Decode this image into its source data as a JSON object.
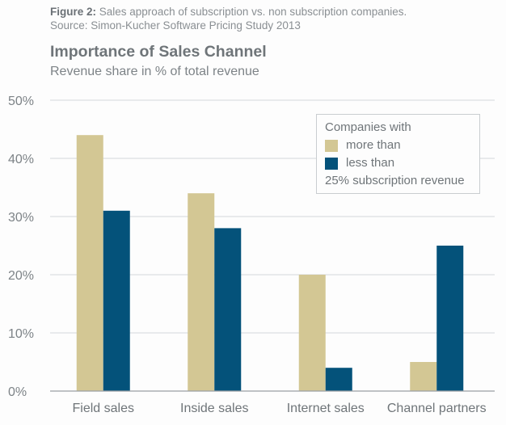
{
  "caption": {
    "label": "Figure 2:",
    "text": " Sales approach of subscription vs. non subscription companies.",
    "source": "Source: Simon-Kucher Software Pricing Study 2013"
  },
  "chart_data": {
    "type": "bar",
    "title": "Importance of Sales Channel",
    "subtitle": "Revenue share in % of total revenue",
    "xlabel": "",
    "ylabel": "",
    "ylim": [
      0,
      50
    ],
    "yticks": [
      0,
      10,
      20,
      30,
      40,
      50
    ],
    "ytick_labels": [
      "0%",
      "10%",
      "20%",
      "30%",
      "40%",
      "50%"
    ],
    "grid": true,
    "categories": [
      "Field sales",
      "Inside sales",
      "Internet sales",
      "Channel partners"
    ],
    "series": [
      {
        "name": "more than",
        "color": "#d3c794",
        "values": [
          44,
          34,
          20,
          5
        ]
      },
      {
        "name": "less than",
        "color": "#04527a",
        "values": [
          31,
          28,
          4,
          25
        ]
      }
    ],
    "legend": {
      "placement": "top-right",
      "header": "Companies with",
      "footer": "25% subscription revenue"
    }
  }
}
